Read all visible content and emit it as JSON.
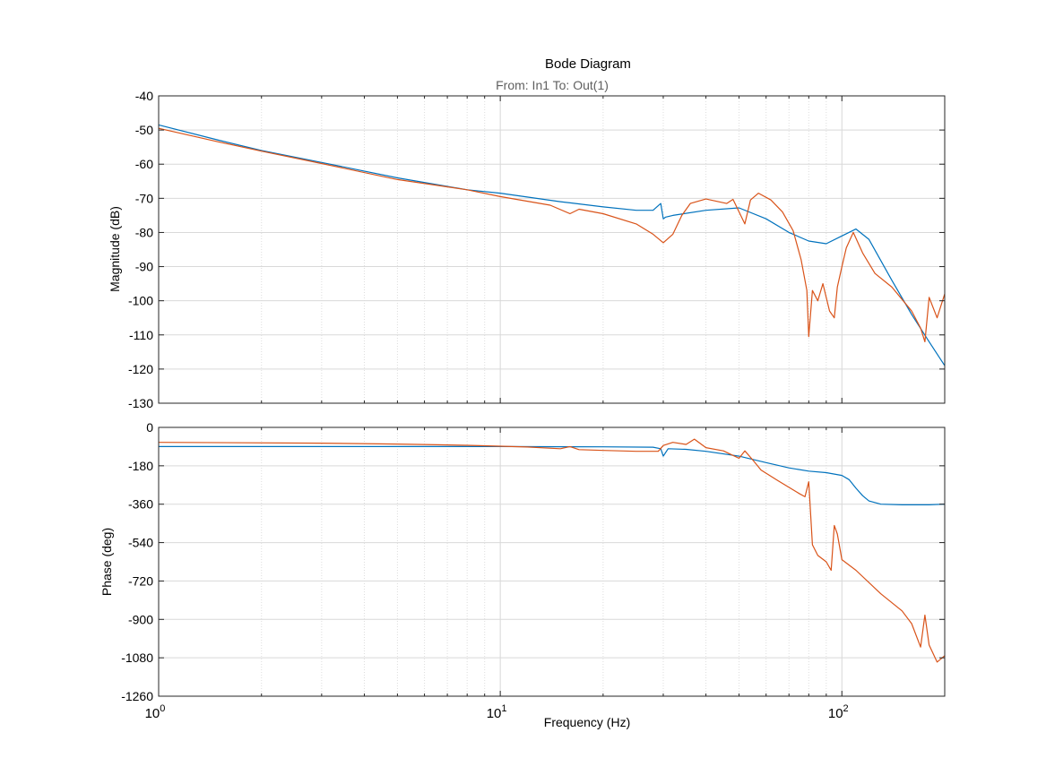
{
  "figure": {
    "title": "Bode Diagram",
    "subtitle": "From: In1  To: Out(1)"
  },
  "chart_data": [
    {
      "type": "line",
      "panel": "magnitude",
      "ylabel": "Magnitude (dB)",
      "x_scale": "log",
      "xlim": [
        1,
        200
      ],
      "ylim": [
        -130,
        -40
      ],
      "yticks": [
        -40,
        -50,
        -60,
        -70,
        -80,
        -90,
        -100,
        -110,
        -120,
        -130
      ],
      "grid": true,
      "series": [
        {
          "color": "#0072BD",
          "x": [
            1,
            1.5,
            2,
            3,
            5,
            8,
            10,
            15,
            20,
            25,
            28,
            29.5,
            30,
            30.5,
            32,
            40,
            50,
            60,
            70,
            80,
            90,
            100,
            110,
            120,
            140,
            160,
            180,
            200
          ],
          "y": [
            -48.5,
            -53,
            -56,
            -59.5,
            -64,
            -67.5,
            -68.5,
            -71,
            -72.5,
            -73.5,
            -73.5,
            -71.5,
            -76,
            -75.5,
            -75,
            -73.5,
            -72.8,
            -76,
            -80,
            -82.5,
            -83.3,
            -81,
            -79,
            -82,
            -94,
            -104,
            -112,
            -119
          ]
        },
        {
          "color": "#D95319",
          "x": [
            1,
            1.5,
            2,
            3,
            5,
            8,
            10,
            14,
            16,
            17,
            20,
            25,
            28,
            30,
            32,
            34,
            36,
            40,
            46,
            48,
            52,
            54,
            57,
            62,
            67,
            72,
            76,
            79,
            80,
            82,
            85,
            88,
            92,
            95,
            97,
            100,
            103,
            108,
            115,
            125,
            140,
            160,
            170,
            175,
            180,
            190,
            200
          ],
          "y": [
            -49.5,
            -53.5,
            -56.2,
            -59.8,
            -64.5,
            -67.5,
            -69.5,
            -72,
            -74.5,
            -73.2,
            -74.5,
            -77.5,
            -80.5,
            -83,
            -80.5,
            -75,
            -71.5,
            -70.2,
            -71.5,
            -70.3,
            -77.5,
            -70.5,
            -68.5,
            -70.5,
            -74,
            -79.5,
            -88,
            -97,
            -110.5,
            -97,
            -100,
            -95,
            -103,
            -105,
            -96,
            -90,
            -84.5,
            -80,
            -86,
            -92,
            -96,
            -103,
            -108,
            -112,
            -99,
            -105,
            -98
          ]
        }
      ]
    },
    {
      "type": "line",
      "panel": "phase",
      "ylabel": "Phase (deg)",
      "xlabel": "Frequency  (Hz)",
      "x_scale": "log",
      "xlim": [
        1,
        200
      ],
      "ylim": [
        -1260,
        0
      ],
      "yticks": [
        0,
        -180,
        -360,
        -540,
        -720,
        -900,
        -1080,
        -1260
      ],
      "xticks": [
        1,
        10,
        100
      ],
      "xtick_labels": [
        "10^0",
        "10^1",
        "10^2"
      ],
      "grid": true,
      "series": [
        {
          "color": "#0072BD",
          "x": [
            1,
            5,
            10,
            20,
            28,
            29.5,
            30,
            31,
            35,
            40,
            50,
            60,
            70,
            80,
            90,
            100,
            105,
            110,
            115,
            120,
            130,
            150,
            180,
            200
          ],
          "y": [
            -90,
            -90,
            -90,
            -91,
            -93,
            -100,
            -135,
            -100,
            -103,
            -112,
            -135,
            -165,
            -190,
            -205,
            -212,
            -225,
            -245,
            -285,
            -320,
            -345,
            -360,
            -363,
            -363,
            -360
          ]
        },
        {
          "color": "#D95319",
          "x": [
            1,
            3,
            5,
            8,
            10,
            12,
            15,
            16,
            17,
            20,
            25,
            29,
            30,
            32,
            35,
            37,
            40,
            45,
            50,
            52,
            55,
            58,
            65,
            75,
            78,
            80,
            82,
            85,
            90,
            93,
            95,
            97,
            100,
            110,
            130,
            150,
            160,
            170,
            175,
            180,
            190,
            200
          ],
          "y": [
            -70,
            -74,
            -78,
            -84,
            -88,
            -92,
            -100,
            -90,
            -104,
            -108,
            -112,
            -112,
            -85,
            -70,
            -80,
            -55,
            -95,
            -110,
            -145,
            -110,
            -155,
            -200,
            -250,
            -310,
            -325,
            -255,
            -550,
            -600,
            -630,
            -670,
            -460,
            -500,
            -620,
            -670,
            -780,
            -860,
            -920,
            -1030,
            -880,
            -1020,
            -1100,
            -1070
          ]
        }
      ]
    }
  ]
}
